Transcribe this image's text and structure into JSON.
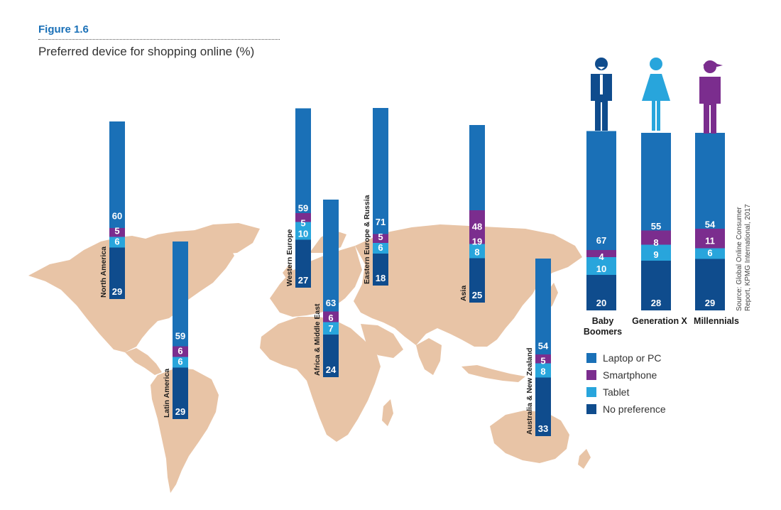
{
  "figure_label": "Figure 1.6",
  "title": "Preferred device for shopping online (%)",
  "source_line1": "Source: Global Online Consumer",
  "source_line2": "Report, KPMG International, 2017",
  "colors": {
    "laptop": "#1a70b7",
    "smartphone": "#7b2d8e",
    "tablet": "#28a5dc",
    "nopref": "#0f4c8d",
    "map": "#e8c4a6",
    "person_babyboomer": "#0f4c8d",
    "person_genx": "#28a5dc",
    "person_millennial": "#7b2d8e"
  },
  "chart_data": [
    {
      "type": "bar",
      "stacked": true,
      "title": "Preferred device for shopping online (%)",
      "categories": [
        "North America",
        "Latin America",
        "Western Europe",
        "Africa & Middle East",
        "Eastern Europe & Russia",
        "Asia",
        "Australia & New Zealand"
      ],
      "series": [
        {
          "name": "Laptop or PC",
          "values": [
            60,
            59,
            59,
            63,
            71,
            48,
            54
          ]
        },
        {
          "name": "Smartphone",
          "values": [
            5,
            6,
            5,
            6,
            5,
            19,
            5
          ]
        },
        {
          "name": "Tablet",
          "values": [
            6,
            6,
            10,
            7,
            6,
            8,
            8
          ]
        },
        {
          "name": "No preference",
          "values": [
            29,
            29,
            27,
            24,
            18,
            25,
            33
          ]
        }
      ]
    },
    {
      "type": "bar",
      "stacked": true,
      "categories": [
        "Baby Boomers",
        "Generation X",
        "Millennials"
      ],
      "series": [
        {
          "name": "Laptop or PC",
          "values": [
            67,
            55,
            54
          ]
        },
        {
          "name": "Smartphone",
          "values": [
            4,
            8,
            11
          ]
        },
        {
          "name": "Tablet",
          "values": [
            10,
            9,
            6
          ]
        },
        {
          "name": "No preference",
          "values": [
            20,
            28,
            29
          ]
        }
      ]
    }
  ],
  "legend": [
    {
      "label": "Laptop or PC",
      "color": "#1a70b7"
    },
    {
      "label": "Smartphone",
      "color": "#7b2d8e"
    },
    {
      "label": "Tablet",
      "color": "#28a5dc"
    },
    {
      "label": "No preference",
      "color": "#0f4c8d"
    }
  ],
  "generation_labels": [
    {
      "line1": "Baby",
      "line2": "Boomers"
    },
    {
      "line1": "Generation X",
      "line2": ""
    },
    {
      "line1": "Millennials",
      "line2": ""
    }
  ]
}
